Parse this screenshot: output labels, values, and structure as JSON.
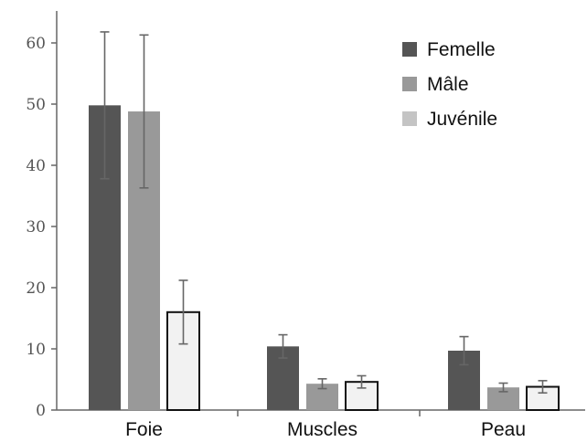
{
  "chart_data": {
    "type": "bar",
    "title": "",
    "xlabel": "",
    "ylabel": "",
    "ylim": [
      0,
      65
    ],
    "yticks": [
      0,
      10,
      20,
      30,
      40,
      50,
      60
    ],
    "categories": [
      "Foie",
      "Muscles",
      "Peau"
    ],
    "series": [
      {
        "name": "Femelle",
        "color": "#555555",
        "values": [
          49.8,
          10.4,
          9.7
        ],
        "errors": [
          12,
          1.9,
          2.3
        ]
      },
      {
        "name": "Mâle",
        "color": "#999999",
        "values": [
          48.8,
          4.3,
          3.7
        ],
        "errors": [
          12.5,
          0.8,
          0.7
        ]
      },
      {
        "name": "Juvénile",
        "color": "#f2f2f2",
        "stroke": "#111111",
        "values": [
          16.0,
          4.6,
          3.8
        ],
        "errors": [
          5.2,
          1.0,
          1.0
        ]
      }
    ],
    "legend": {
      "position": "top-right"
    },
    "grid": false
  }
}
